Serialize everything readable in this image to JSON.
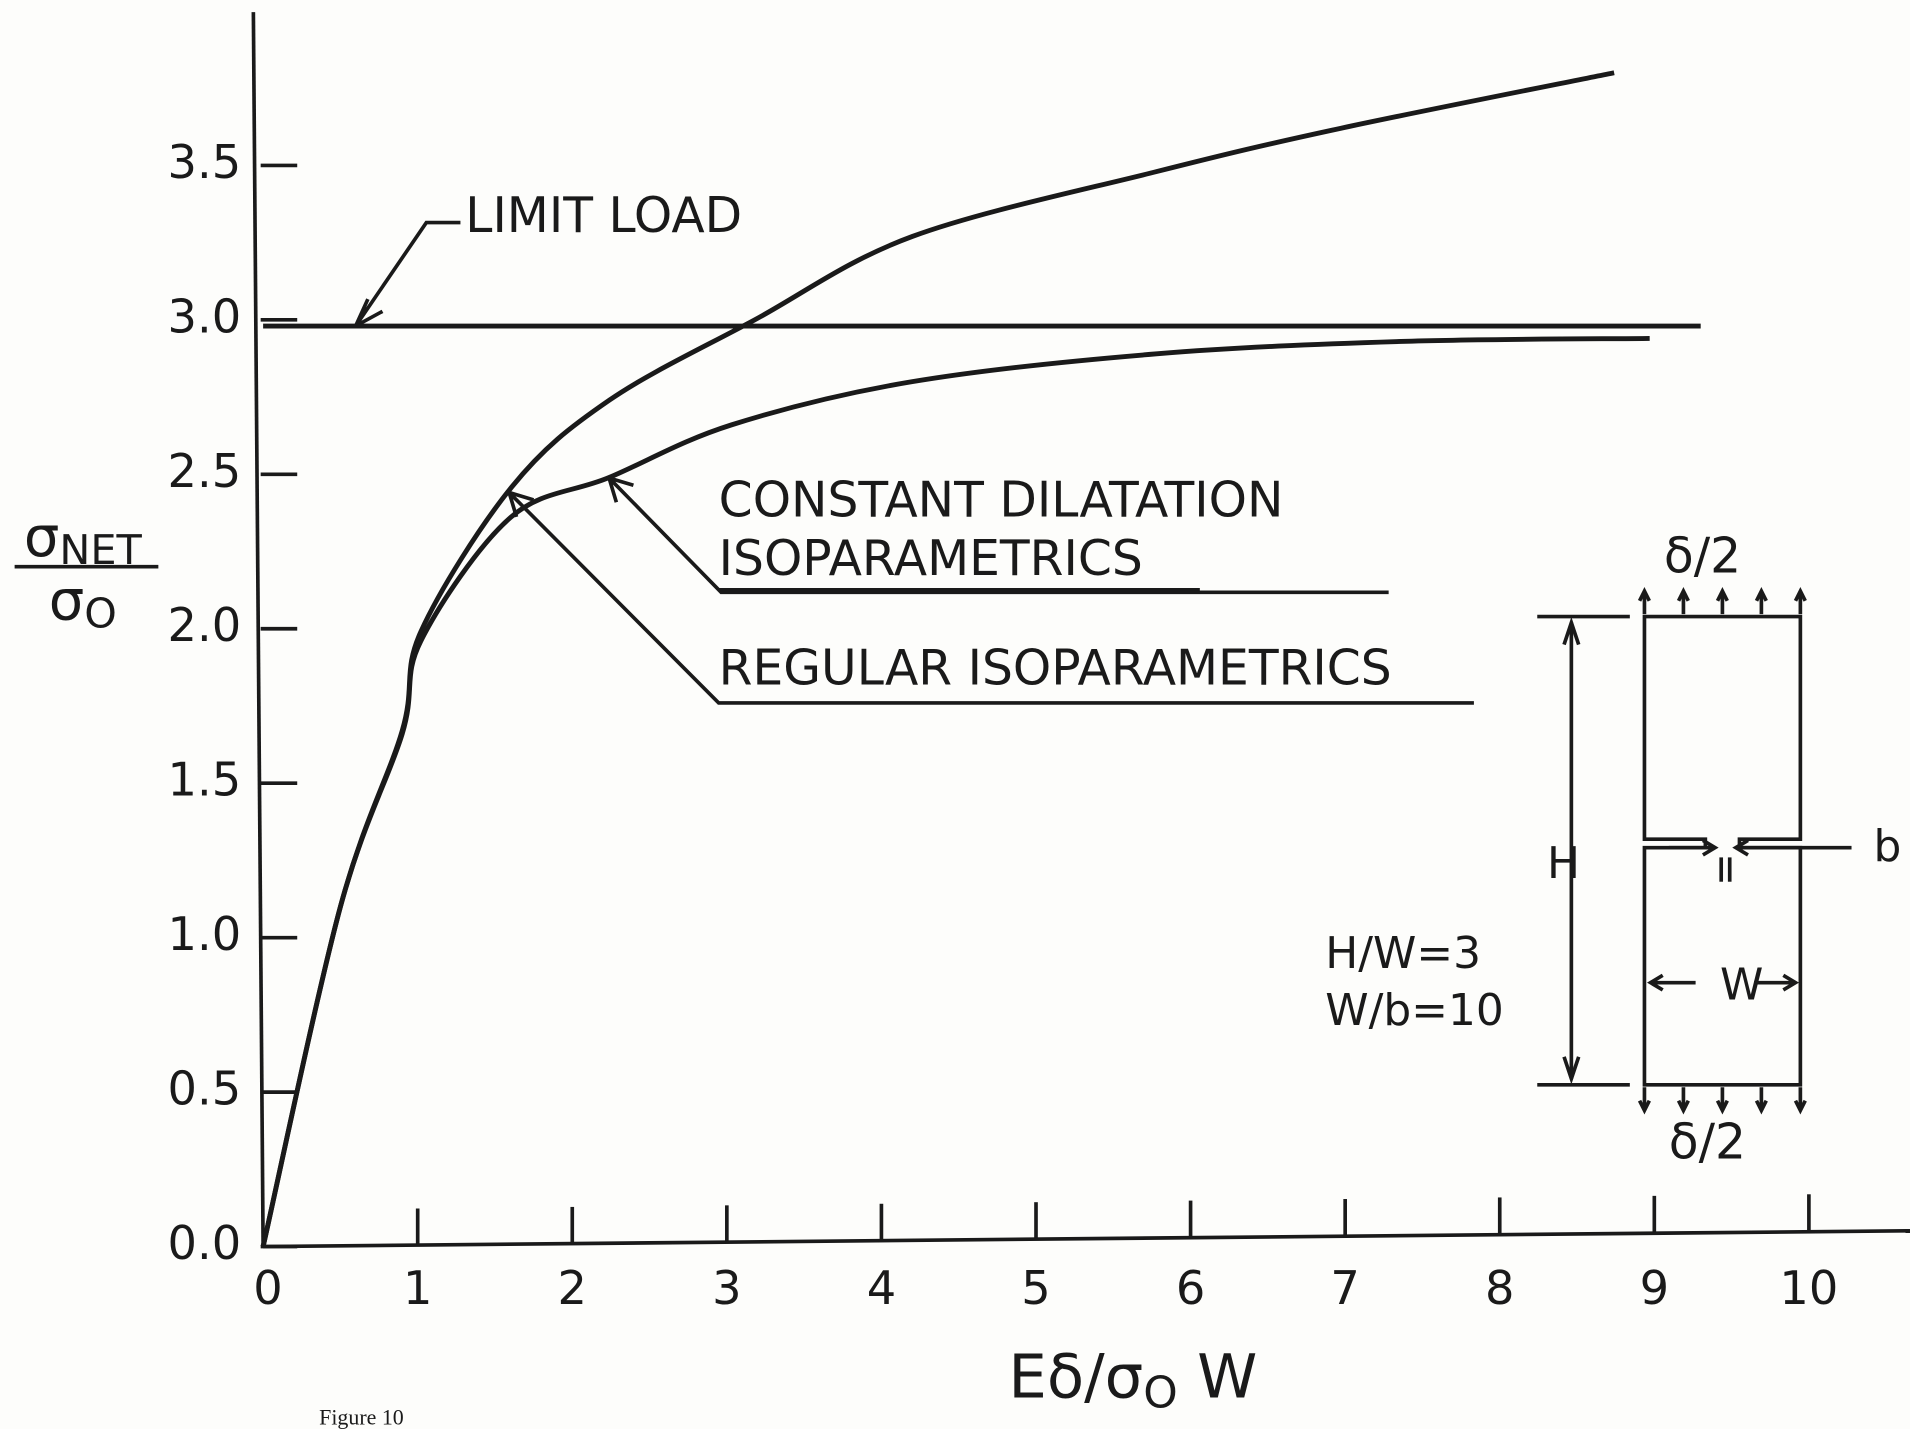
{
  "chart_data": {
    "type": "line",
    "xlabel": [
      "Eδ/σ",
      "O",
      " W"
    ],
    "ylabel": {
      "numerator": [
        "σ",
        "NET"
      ],
      "denominator": [
        "σ",
        "O"
      ]
    },
    "xlim": [
      0,
      10.65
    ],
    "ylim": [
      0,
      4
    ],
    "xticks": [
      0,
      1,
      2,
      3,
      4,
      5,
      6,
      7,
      8,
      9,
      10
    ],
    "yticks": [
      {
        "value": 0,
        "label": "0.0"
      },
      0.5,
      {
        "value": 1,
        "label": "1.0"
      },
      1.5,
      {
        "value": 2,
        "label": "2.0"
      },
      2.5,
      {
        "value": 3,
        "label": "3.0"
      },
      3.5
    ],
    "color": "#1a1a1a",
    "series": [
      {
        "x": [
          0,
          9.3
        ],
        "values": [
          2.98,
          2.98
        ]
      },
      {
        "x": [
          0,
          0.5,
          0.9,
          1.02,
          1.61,
          2.24,
          3.18,
          4.2,
          5.78,
          6.97,
          8.74
        ],
        "values": [
          0,
          1.1,
          1.67,
          1.99,
          2.46,
          2.74,
          3.0,
          3.27,
          3.48,
          3.62,
          3.8
        ]
      },
      {
        "x": [
          0,
          0.5,
          0.9,
          1.02,
          1.6,
          2.24,
          3.03,
          4.2,
          5.78,
          7.36,
          8.97
        ],
        "values": [
          0,
          1.1,
          1.66,
          1.96,
          2.36,
          2.49,
          2.66,
          2.8,
          2.89,
          2.93,
          2.94
        ]
      }
    ],
    "annotations": [
      "LIMIT LOAD",
      "CONSTANT DILATATION",
      "ISOPARAMETRICS",
      "REGULAR ISOPARAMETRICS",
      "δ/2",
      "δ/2",
      "H",
      "b",
      "W",
      "H/W=3",
      "W/b=10",
      "Figure 10"
    ]
  }
}
